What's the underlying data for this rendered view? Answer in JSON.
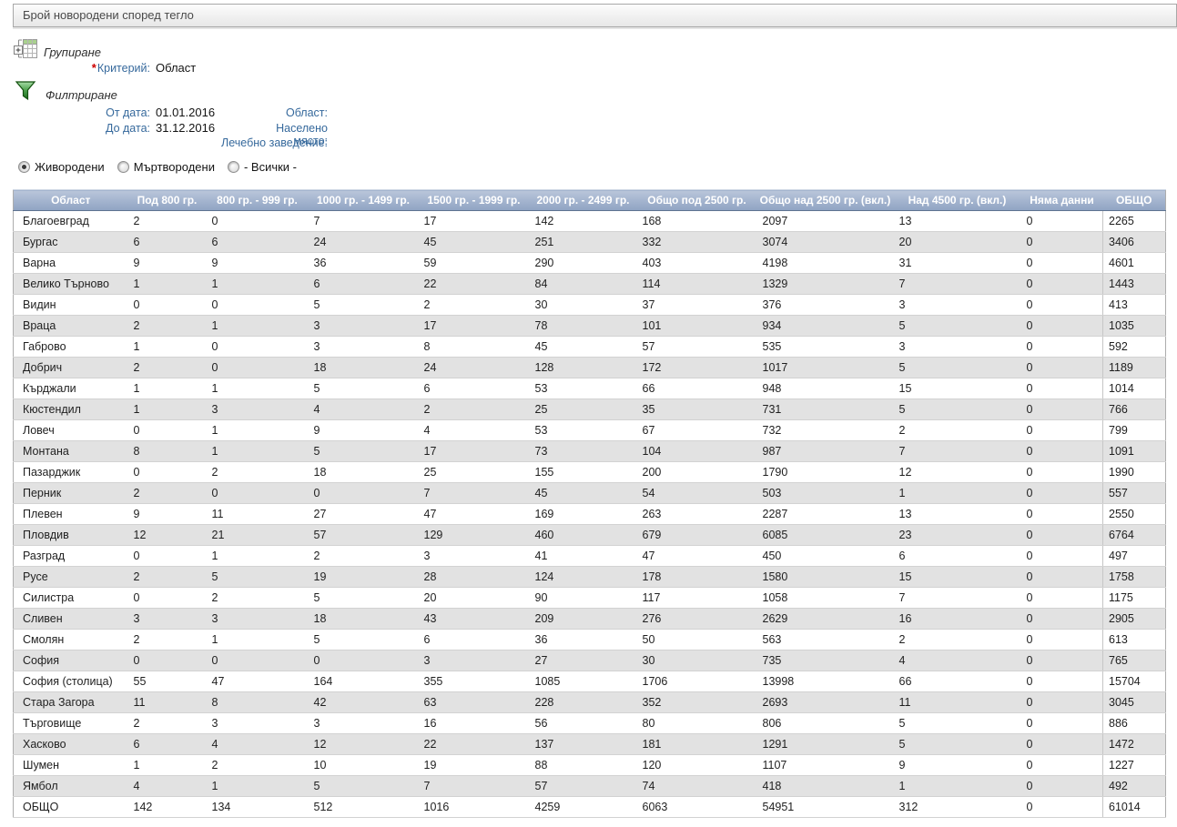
{
  "title": "Брой новородени според тегло",
  "grouping": {
    "label": "Групиране",
    "criteria_required_mark": "*",
    "criteria_label": "Критерий:",
    "criteria_value": "Област"
  },
  "filtering": {
    "label": "Филтриране",
    "from_date_label": "От дата:",
    "from_date_value": "01.01.2016",
    "to_date_label": "До дата:",
    "to_date_value": "31.12.2016",
    "region_label": "Област:",
    "region_value": "",
    "settlement_label": "Населено място:",
    "settlement_value": "",
    "facility_label": "Лечебно заведение:",
    "facility_value": ""
  },
  "radios": [
    {
      "label": "Живородени",
      "selected": true
    },
    {
      "label": "Мъртвородени",
      "selected": false
    },
    {
      "label": "- Всички -",
      "selected": false
    }
  ],
  "icons": {
    "grouping": "grouping-grid-icon",
    "filtering": "filter-funnel-icon"
  },
  "colors": {
    "label_blue": "#36699c",
    "required_red": "#cc0000",
    "table_header_top": "#bac6da",
    "table_header_bottom": "#8fa3c3",
    "row_alt_gray": "#e2e2e2",
    "funnel_green": "#2e8b2e"
  },
  "chart_data": {
    "type": "table",
    "title": "Брой новородени според тегло",
    "columns": [
      "Област",
      "Под 800 гр.",
      "800 гр. - 999 гр.",
      "1000 гр. - 1499 гр.",
      "1500 гр. - 1999 гр.",
      "2000 гр. - 2499 гр.",
      "Общо под 2500 гр.",
      "Общо над 2500 гр. (вкл.)",
      "Над 4500 гр. (вкл.)",
      "Няма данни",
      "ОБЩО"
    ],
    "rows": [
      [
        "Благоевград",
        2,
        0,
        7,
        17,
        142,
        168,
        2097,
        13,
        0,
        2265
      ],
      [
        "Бургас",
        6,
        6,
        24,
        45,
        251,
        332,
        3074,
        20,
        0,
        3406
      ],
      [
        "Варна",
        9,
        9,
        36,
        59,
        290,
        403,
        4198,
        31,
        0,
        4601
      ],
      [
        "Велико Търново",
        1,
        1,
        6,
        22,
        84,
        114,
        1329,
        7,
        0,
        1443
      ],
      [
        "Видин",
        0,
        0,
        5,
        2,
        30,
        37,
        376,
        3,
        0,
        413
      ],
      [
        "Враца",
        2,
        1,
        3,
        17,
        78,
        101,
        934,
        5,
        0,
        1035
      ],
      [
        "Габрово",
        1,
        0,
        3,
        8,
        45,
        57,
        535,
        3,
        0,
        592
      ],
      [
        "Добрич",
        2,
        0,
        18,
        24,
        128,
        172,
        1017,
        5,
        0,
        1189
      ],
      [
        "Кърджали",
        1,
        1,
        5,
        6,
        53,
        66,
        948,
        15,
        0,
        1014
      ],
      [
        "Кюстендил",
        1,
        3,
        4,
        2,
        25,
        35,
        731,
        5,
        0,
        766
      ],
      [
        "Ловеч",
        0,
        1,
        9,
        4,
        53,
        67,
        732,
        2,
        0,
        799
      ],
      [
        "Монтана",
        8,
        1,
        5,
        17,
        73,
        104,
        987,
        7,
        0,
        1091
      ],
      [
        "Пазарджик",
        0,
        2,
        18,
        25,
        155,
        200,
        1790,
        12,
        0,
        1990
      ],
      [
        "Перник",
        2,
        0,
        0,
        7,
        45,
        54,
        503,
        1,
        0,
        557
      ],
      [
        "Плевен",
        9,
        11,
        27,
        47,
        169,
        263,
        2287,
        13,
        0,
        2550
      ],
      [
        "Пловдив",
        12,
        21,
        57,
        129,
        460,
        679,
        6085,
        23,
        0,
        6764
      ],
      [
        "Разград",
        0,
        1,
        2,
        3,
        41,
        47,
        450,
        6,
        0,
        497
      ],
      [
        "Русе",
        2,
        5,
        19,
        28,
        124,
        178,
        1580,
        15,
        0,
        1758
      ],
      [
        "Силистра",
        0,
        2,
        5,
        20,
        90,
        117,
        1058,
        7,
        0,
        1175
      ],
      [
        "Сливен",
        3,
        3,
        18,
        43,
        209,
        276,
        2629,
        16,
        0,
        2905
      ],
      [
        "Смолян",
        2,
        1,
        5,
        6,
        36,
        50,
        563,
        2,
        0,
        613
      ],
      [
        "София",
        0,
        0,
        0,
        3,
        27,
        30,
        735,
        4,
        0,
        765
      ],
      [
        "София (столица)",
        55,
        47,
        164,
        355,
        1085,
        1706,
        13998,
        66,
        0,
        15704
      ],
      [
        "Стара Загора",
        11,
        8,
        42,
        63,
        228,
        352,
        2693,
        11,
        0,
        3045
      ],
      [
        "Търговище",
        2,
        3,
        3,
        16,
        56,
        80,
        806,
        5,
        0,
        886
      ],
      [
        "Хасково",
        6,
        4,
        12,
        22,
        137,
        181,
        1291,
        5,
        0,
        1472
      ],
      [
        "Шумен",
        1,
        2,
        10,
        19,
        88,
        120,
        1107,
        9,
        0,
        1227
      ],
      [
        "Ямбол",
        4,
        1,
        5,
        7,
        57,
        74,
        418,
        1,
        0,
        492
      ]
    ],
    "total_row": [
      "ОБЩО",
      142,
      134,
      512,
      1016,
      4259,
      6063,
      54951,
      312,
      0,
      61014
    ]
  }
}
